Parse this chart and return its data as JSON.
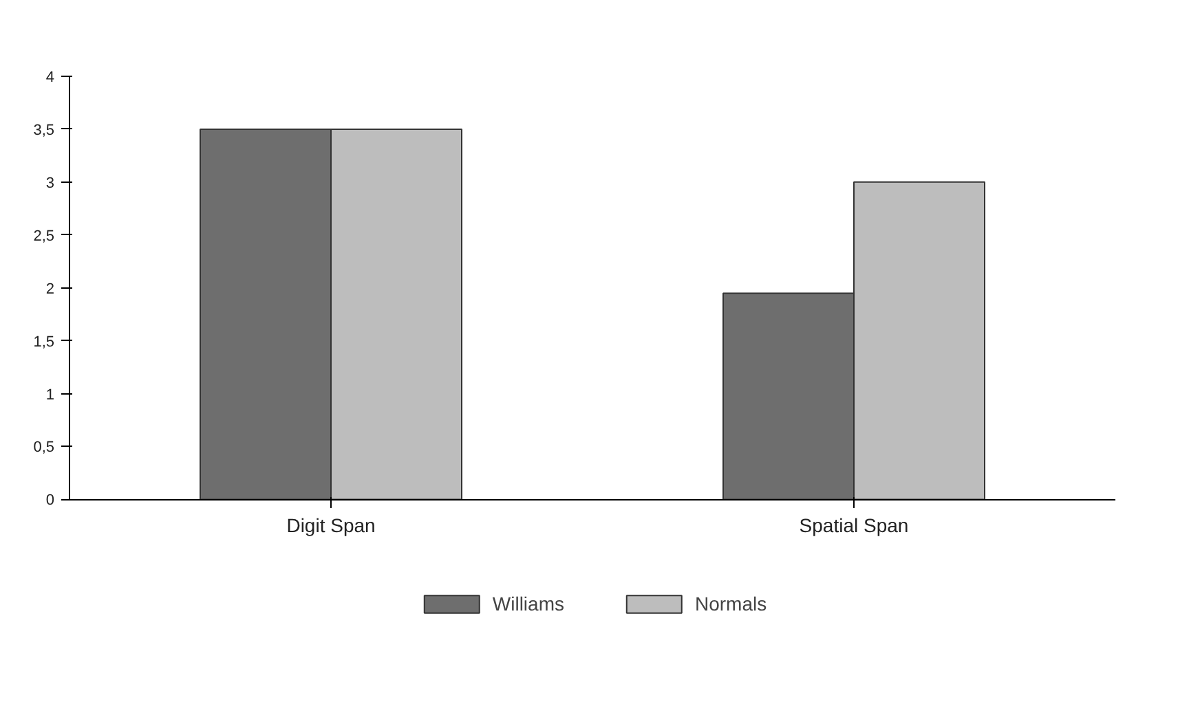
{
  "chart_data": {
    "type": "bar",
    "categories": [
      "Digit Span",
      "Spatial Span"
    ],
    "series": [
      {
        "name": "Williams",
        "color": "#6e6e6e",
        "values": [
          3.5,
          1.95
        ]
      },
      {
        "name": "Normals",
        "color": "#bdbdbd",
        "values": [
          3.5,
          3.0
        ]
      }
    ],
    "ylim": [
      0,
      4
    ],
    "yticks": [
      0,
      {
        "value": 0.5,
        "label": "0,5"
      },
      1,
      {
        "value": 1.5,
        "label": "1,5"
      },
      2,
      {
        "value": 2.5,
        "label": "2,5"
      },
      3,
      {
        "value": 3.5,
        "label": "3,5"
      },
      4
    ],
    "grid": false,
    "legend": "bottom"
  }
}
